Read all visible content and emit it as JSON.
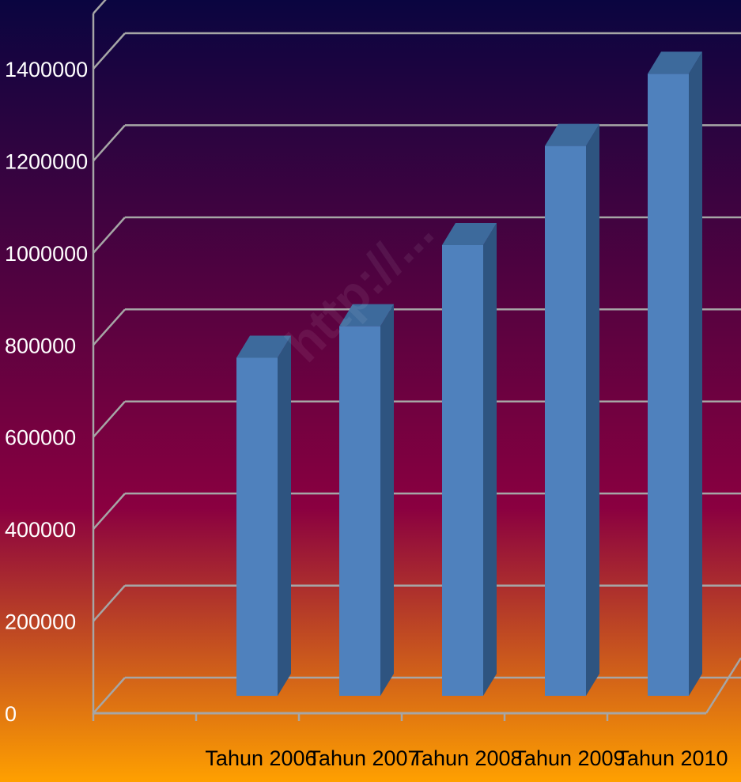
{
  "chart_data": {
    "type": "bar",
    "title": "",
    "xlabel": "",
    "ylabel": "",
    "categories": [
      "Tahun 2006",
      "Tahun 2007",
      "Tahun 2008",
      "Tahun 2009",
      "Tahun 2010"
    ],
    "values": [
      750000,
      820000,
      1000000,
      1220000,
      1380000
    ],
    "ylim": [
      0,
      1400000
    ],
    "yticks": [
      "0",
      "200000",
      "400000",
      "600000",
      "800000",
      "1000000",
      "1200000",
      "1400000"
    ],
    "grid": true,
    "legend": "none",
    "style": "3d-column"
  },
  "colors": {
    "background_top": "#0a0540",
    "background_mid": "#8a0040",
    "background_bottom": "#ffa000",
    "bar_front": "#4f81bd",
    "bar_top": "#3d6a9c",
    "bar_side": "#2e5480",
    "grid": "#a6a6a6",
    "tick_text": "#ffffff",
    "category_text": "#000000"
  },
  "watermark": {
    "text": "http://..."
  }
}
